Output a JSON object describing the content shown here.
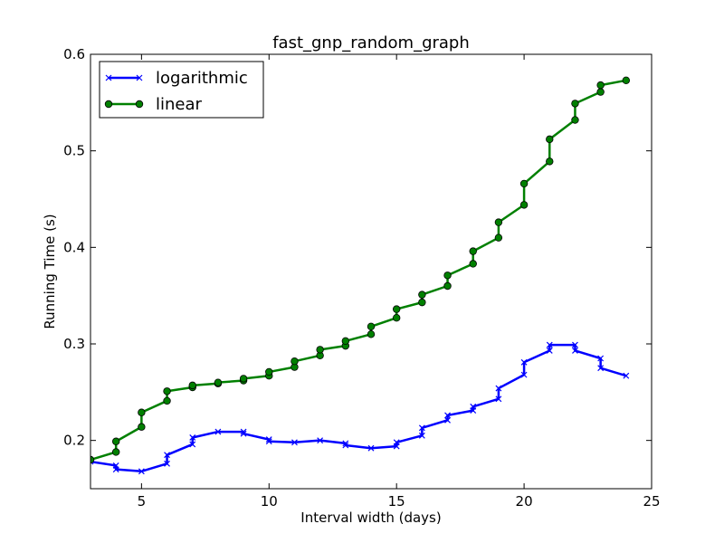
{
  "chart_data": {
    "type": "line",
    "title": "fast_gnp_random_graph",
    "xlabel": "Interval width (days)",
    "ylabel": "Running Time (s)",
    "xlim": [
      3,
      25
    ],
    "ylim": [
      0.15,
      0.6
    ],
    "xticks": [
      5,
      10,
      15,
      20,
      25
    ],
    "yticks": [
      0.2,
      0.3,
      0.4,
      0.5,
      0.6
    ],
    "xtick_labels": [
      "5",
      "10",
      "15",
      "20",
      "25"
    ],
    "ytick_labels": [
      "0.2",
      "0.3",
      "0.4",
      "0.5",
      "0.6"
    ],
    "legend_position": "top-left",
    "grid": false,
    "series": [
      {
        "name": "logarithmic",
        "color": "#0000ff",
        "marker": "x",
        "points": [
          [
            3,
            0.178
          ],
          [
            4,
            0.174
          ],
          [
            4,
            0.17
          ],
          [
            5,
            0.168
          ],
          [
            6,
            0.176
          ],
          [
            6,
            0.185
          ],
          [
            7,
            0.196
          ],
          [
            7,
            0.203
          ],
          [
            8,
            0.209
          ],
          [
            9,
            0.209
          ],
          [
            9,
            0.207
          ],
          [
            10,
            0.201
          ],
          [
            10,
            0.199
          ],
          [
            11,
            0.198
          ],
          [
            12,
            0.2
          ],
          [
            13,
            0.197
          ],
          [
            13,
            0.195
          ],
          [
            14,
            0.192
          ],
          [
            15,
            0.194
          ],
          [
            15,
            0.198
          ],
          [
            16,
            0.205
          ],
          [
            16,
            0.213
          ],
          [
            17,
            0.221
          ],
          [
            17,
            0.226
          ],
          [
            18,
            0.231
          ],
          [
            18,
            0.235
          ],
          [
            19,
            0.243
          ],
          [
            19,
            0.254
          ],
          [
            20,
            0.268
          ],
          [
            20,
            0.281
          ],
          [
            21,
            0.293
          ],
          [
            21,
            0.299
          ],
          [
            22,
            0.299
          ],
          [
            22,
            0.293
          ],
          [
            23,
            0.285
          ],
          [
            23,
            0.275
          ],
          [
            24,
            0.267
          ]
        ]
      },
      {
        "name": "linear",
        "color": "#008000",
        "marker": "o",
        "points": [
          [
            3,
            0.18
          ],
          [
            4,
            0.188
          ],
          [
            4,
            0.199
          ],
          [
            5,
            0.214
          ],
          [
            5,
            0.229
          ],
          [
            6,
            0.241
          ],
          [
            6,
            0.251
          ],
          [
            7,
            0.255
          ],
          [
            7,
            0.257
          ],
          [
            8,
            0.259
          ],
          [
            8,
            0.26
          ],
          [
            9,
            0.262
          ],
          [
            9,
            0.264
          ],
          [
            10,
            0.267
          ],
          [
            10,
            0.271
          ],
          [
            11,
            0.276
          ],
          [
            11,
            0.282
          ],
          [
            12,
            0.288
          ],
          [
            12,
            0.294
          ],
          [
            13,
            0.298
          ],
          [
            13,
            0.303
          ],
          [
            14,
            0.31
          ],
          [
            14,
            0.318
          ],
          [
            15,
            0.327
          ],
          [
            15,
            0.336
          ],
          [
            16,
            0.343
          ],
          [
            16,
            0.351
          ],
          [
            17,
            0.36
          ],
          [
            17,
            0.371
          ],
          [
            18,
            0.383
          ],
          [
            18,
            0.396
          ],
          [
            19,
            0.41
          ],
          [
            19,
            0.426
          ],
          [
            20,
            0.444
          ],
          [
            20,
            0.466
          ],
          [
            21,
            0.489
          ],
          [
            21,
            0.512
          ],
          [
            22,
            0.532
          ],
          [
            22,
            0.549
          ],
          [
            23,
            0.561
          ],
          [
            23,
            0.568
          ],
          [
            24,
            0.573
          ]
        ]
      }
    ]
  }
}
